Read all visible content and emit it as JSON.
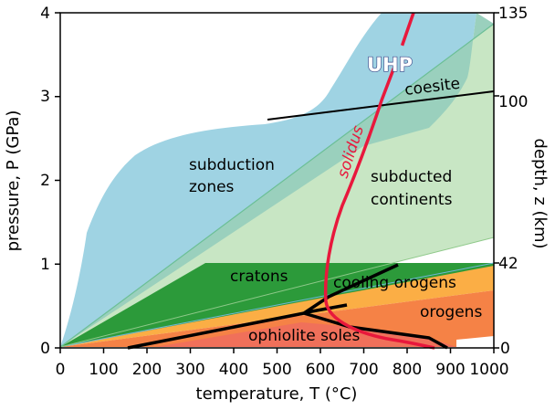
{
  "axes": {
    "x_label": "temperature, T (°C)",
    "y_left_label": "pressure, P (GPa)",
    "y_right_label": "depth, z (km)",
    "x_ticks": [
      "0",
      "100",
      "200",
      "300",
      "400",
      "500",
      "600",
      "700",
      "800",
      "900",
      "1000"
    ],
    "y_left_ticks": [
      "0",
      "1",
      "2",
      "3",
      "4"
    ],
    "y_right_ticks": [
      "0",
      "42",
      "100",
      "135"
    ]
  },
  "regions": {
    "uhp": "UHP",
    "coesite": "coesite",
    "solidus": "solidus",
    "subduction_line1": "subduction",
    "subduction_line2": "zones",
    "subducted_line1": "subducted",
    "subducted_line2": "continents",
    "cratons": "cratons",
    "cooling_orogens": "cooling orogens",
    "orogens": "orogens",
    "ophiolite_soles": "ophiolite soles"
  },
  "colors": {
    "subduction": "#9fd3e3",
    "subducted": "#c8e6c4",
    "overlap": "#9ad0bd",
    "cratons": "#2c9a3a",
    "cooling_orogens": "#fbae45",
    "orogens": "#f58246",
    "ophiolite": "#f0705a",
    "solidus": "#e8183c"
  }
}
